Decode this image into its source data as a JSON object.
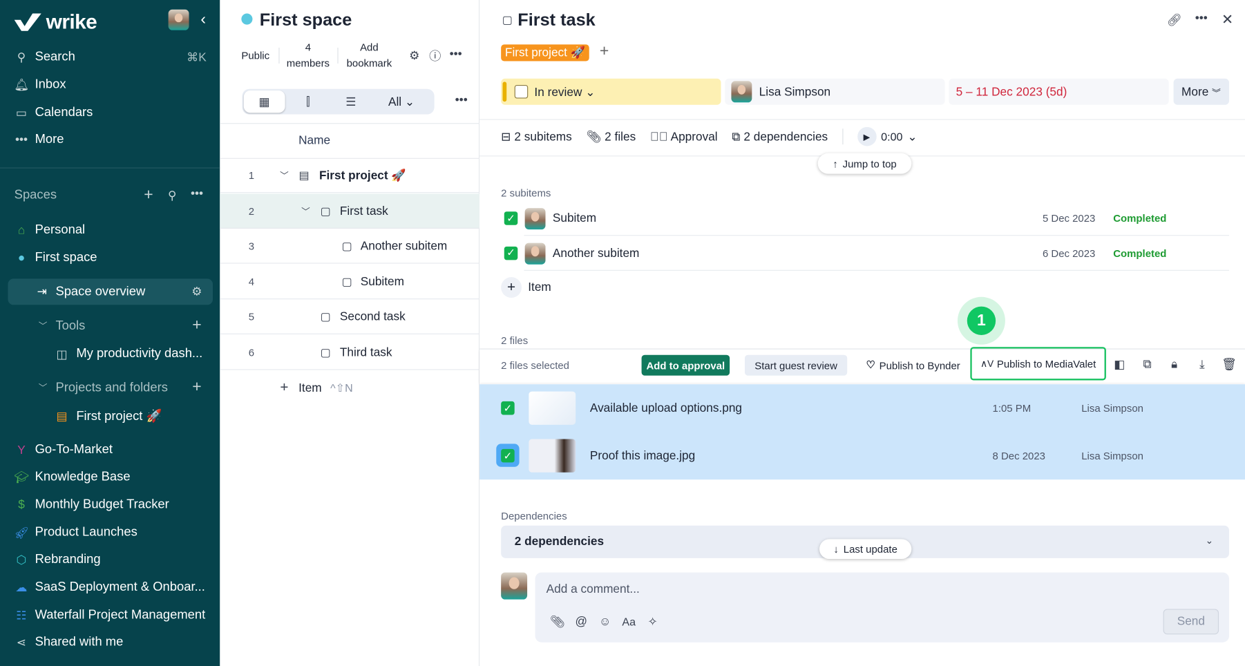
{
  "sidebar": {
    "logo": "wrike",
    "nav": [
      {
        "label": "Search",
        "icon": "search-icon",
        "shortcut": "⌘K"
      },
      {
        "label": "Inbox",
        "icon": "bell-icon"
      },
      {
        "label": "Calendars",
        "icon": "calendar-icon"
      },
      {
        "label": "More",
        "icon": "more-icon"
      }
    ],
    "spaces_label": "Spaces",
    "spaces_top": [
      {
        "label": "Personal",
        "icon": "home-icon",
        "color": "#4caf50"
      },
      {
        "label": "First space",
        "icon": "space-icon",
        "color": "#5bc8e0"
      }
    ],
    "space_overview": "Space overview",
    "tools_label": "Tools",
    "tools_item": "My productivity dash...",
    "projects_label": "Projects and folders",
    "project_item": "First project 🚀",
    "spaces": [
      {
        "label": "Go-To-Market",
        "icon": "branch-icon",
        "color": "#c2418f"
      },
      {
        "label": "Knowledge Base",
        "icon": "graduation-cap-icon",
        "color": "#4caf50"
      },
      {
        "label": "Monthly Budget Tracker",
        "icon": "dollar-icon",
        "color": "#4caf50"
      },
      {
        "label": "Product Launches",
        "icon": "rocket-icon",
        "color": "#3a8ee6"
      },
      {
        "label": "Rebranding",
        "icon": "cube-icon",
        "color": "#35c3c9"
      },
      {
        "label": "SaaS Deployment & Onboar...",
        "icon": "cloud-icon",
        "color": "#3a8ee6"
      },
      {
        "label": "Waterfall Project Management",
        "icon": "list-icon",
        "color": "#3a8ee6"
      }
    ],
    "shared": "Shared with me"
  },
  "middle": {
    "title": "First space",
    "public": "Public",
    "members_count": "4",
    "members": "members",
    "add": "Add",
    "bookmark": "bookmark",
    "view_filter": "All",
    "column": "Name",
    "rows": [
      {
        "n": "1",
        "label": "First project 🚀"
      },
      {
        "n": "2",
        "label": "First task"
      },
      {
        "n": "3",
        "label": "Another subitem"
      },
      {
        "n": "4",
        "label": "Subitem"
      },
      {
        "n": "5",
        "label": "Second task"
      },
      {
        "n": "6",
        "label": "Third task"
      }
    ],
    "add_item": "Item",
    "add_shortcut": "^⇧N"
  },
  "task": {
    "title": "First task",
    "tag": "First project 🚀",
    "tag_color": "#f7941d",
    "status": "In review",
    "assignee": "Lisa Simpson",
    "dates": "5 – 11 Dec 2023 (5d)",
    "more": "More",
    "meta": {
      "subitems": "2 subitems",
      "files": "2 files",
      "approval": "Approval",
      "dependencies": "2 dependencies",
      "timer": "0:00"
    },
    "jump_top": "Jump to top",
    "subitems_label": "2 subitems",
    "subitems": [
      {
        "label": "Subitem",
        "date": "5 Dec 2023",
        "status": "Completed"
      },
      {
        "label": "Another subitem",
        "date": "6 Dec 2023",
        "status": "Completed"
      }
    ],
    "add_item": "Item",
    "step_badge": "1",
    "files_label": "2 files",
    "files_selected": "2 files selected",
    "add_approval": "Add to approval",
    "guest_review": "Start guest review",
    "bynder": "Publish to Bynder",
    "mediavalet": "Publish to MediaValet",
    "files": [
      {
        "name": "Available upload options.png",
        "date": "1:05 PM",
        "author": "Lisa Simpson"
      },
      {
        "name": "Proof this image.jpg",
        "date": "8 Dec 2023",
        "author": "Lisa Simpson"
      }
    ],
    "dependencies_label": "Dependencies",
    "dependencies_box": "2 dependencies",
    "last_update": "Last update",
    "comment_placeholder": "Add a comment...",
    "send": "Send"
  }
}
